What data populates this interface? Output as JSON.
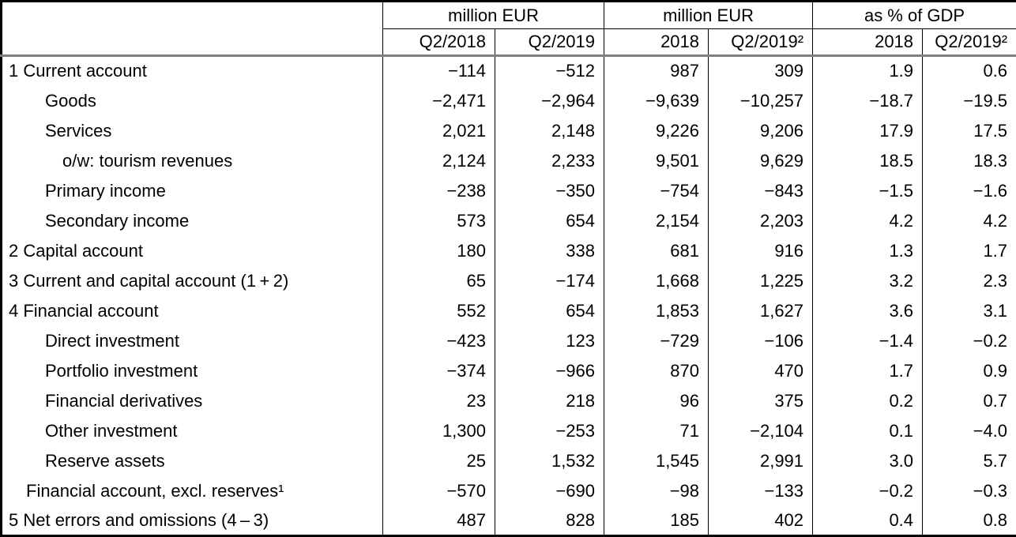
{
  "colors": {
    "background": "#ffffff",
    "text": "#000000",
    "grid": "#000000",
    "header_rule": "#808080"
  },
  "chart_data": {
    "type": "table",
    "row_label_header": "",
    "column_groups": [
      {
        "label": "million EUR",
        "span": 2
      },
      {
        "label": "million EUR",
        "span": 2
      },
      {
        "label": "as % of GDP",
        "span": 2
      }
    ],
    "column_headers": [
      "Q2/2018",
      "Q2/2019",
      "2018",
      "Q2/2019²",
      "2018",
      "Q2/2019²"
    ],
    "rows": [
      {
        "label": "1 Current account",
        "bold": true,
        "indent": 0,
        "values": [
          "−114",
          "−512",
          "987",
          "309",
          "1.9",
          "0.6"
        ]
      },
      {
        "label": "Goods",
        "bold": false,
        "indent": 2,
        "values": [
          "−2,471",
          "−2,964",
          "−9,639",
          "−10,257",
          "−18.7",
          "−19.5"
        ]
      },
      {
        "label": "Services",
        "bold": false,
        "indent": 2,
        "values": [
          "2,021",
          "2,148",
          "9,226",
          "9,206",
          "17.9",
          "17.5"
        ]
      },
      {
        "label": "o/w: tourism revenues",
        "bold": false,
        "indent": 3,
        "values": [
          "2,124",
          "2,233",
          "9,501",
          "9,629",
          "18.5",
          "18.3"
        ]
      },
      {
        "label": "Primary income",
        "bold": false,
        "indent": 2,
        "values": [
          "−238",
          "−350",
          "−754",
          "−843",
          "−1.5",
          "−1.6"
        ]
      },
      {
        "label": "Secondary income",
        "bold": false,
        "indent": 2,
        "values": [
          "573",
          "654",
          "2,154",
          "2,203",
          "4.2",
          "4.2"
        ]
      },
      {
        "label": "2 Capital account",
        "bold": true,
        "indent": 0,
        "values": [
          "180",
          "338",
          "681",
          "916",
          "1.3",
          "1.7"
        ]
      },
      {
        "label": "3 Current and capital account (1 + 2)",
        "bold": true,
        "indent": 0,
        "values": [
          "65",
          "−174",
          "1,668",
          "1,225",
          "3.2",
          "2.3"
        ]
      },
      {
        "label": "4 Financial account",
        "bold": true,
        "indent": 0,
        "values": [
          "552",
          "654",
          "1,853",
          "1,627",
          "3.6",
          "3.1"
        ]
      },
      {
        "label": "Direct investment",
        "bold": false,
        "indent": 2,
        "values": [
          "−423",
          "123",
          "−729",
          "−106",
          "−1.4",
          "−0.2"
        ]
      },
      {
        "label": "Portfolio investment",
        "bold": false,
        "indent": 2,
        "values": [
          "−374",
          "−966",
          "870",
          "470",
          "1.7",
          "0.9"
        ]
      },
      {
        "label": "Financial derivatives",
        "bold": false,
        "indent": 2,
        "values": [
          "23",
          "218",
          "96",
          "375",
          "0.2",
          "0.7"
        ]
      },
      {
        "label": "Other investment",
        "bold": false,
        "indent": 2,
        "values": [
          "1,300",
          "−253",
          "71",
          "−2,104",
          "0.1",
          "−4.0"
        ]
      },
      {
        "label": "Reserve assets",
        "bold": false,
        "indent": 2,
        "values": [
          "25",
          "1,532",
          "1,545",
          "2,991",
          "3.0",
          "5.7"
        ]
      },
      {
        "label": "Financial account, excl. reserves¹",
        "bold": false,
        "indent": 1,
        "values": [
          "−570",
          "−690",
          "−98",
          "−133",
          "−0.2",
          "−0.3"
        ]
      },
      {
        "label": "5 Net errors and omissions (4 – 3)",
        "bold": true,
        "indent": 0,
        "values": [
          "487",
          "828",
          "185",
          "402",
          "0.4",
          "0.8"
        ]
      }
    ]
  }
}
